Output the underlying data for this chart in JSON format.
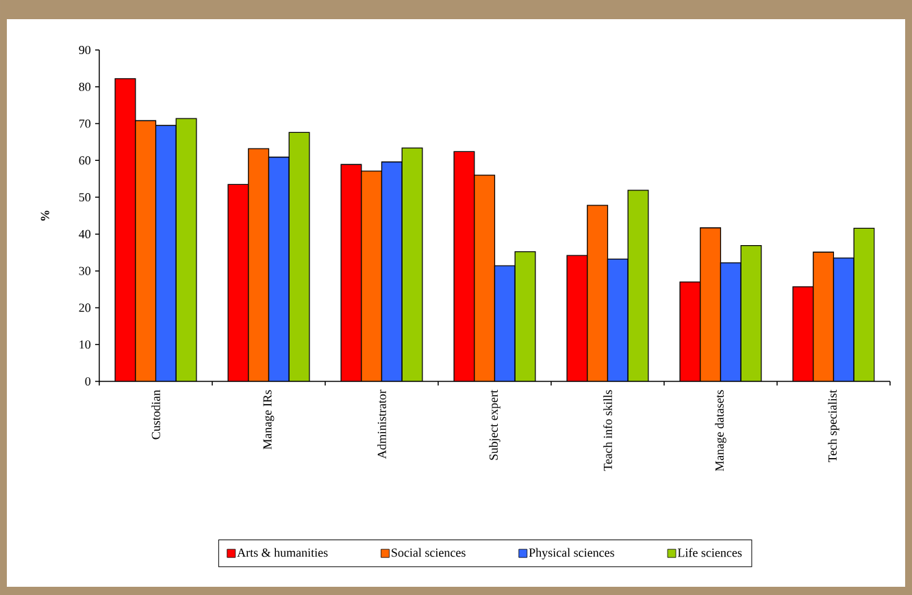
{
  "chart_data": {
    "type": "bar",
    "ylabel": "%",
    "categories": [
      "Custodian",
      "Manage IRs",
      "Administrator",
      "Subject expert",
      "Teach info skills",
      "Manage datasets",
      "Tech specialist"
    ],
    "series": [
      {
        "name": "Arts & humanities",
        "color": "#ff0000",
        "values": [
          82.2,
          53.5,
          58.9,
          62.4,
          34.2,
          27.0,
          25.7
        ]
      },
      {
        "name": "Social sciences",
        "color": "#ff6600",
        "values": [
          70.8,
          63.2,
          57.1,
          56.0,
          47.8,
          41.7,
          35.1
        ]
      },
      {
        "name": "Physical sciences",
        "color": "#3366ff",
        "values": [
          69.5,
          60.9,
          59.6,
          31.4,
          33.2,
          32.2,
          33.5
        ]
      },
      {
        "name": "Life sciences",
        "color": "#99cc00",
        "values": [
          71.4,
          67.6,
          63.4,
          35.2,
          51.9,
          36.9,
          41.6
        ]
      }
    ],
    "ylim": [
      0,
      90
    ],
    "yticks": [
      0,
      10,
      20,
      30,
      40,
      50,
      60,
      70,
      80,
      90
    ],
    "grid": false,
    "legend": "bottom"
  }
}
